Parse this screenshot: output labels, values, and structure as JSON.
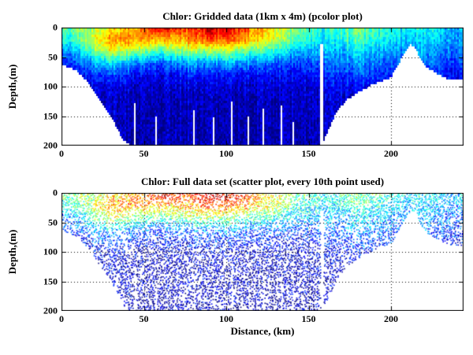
{
  "chart_data": [
    {
      "type": "heatmap",
      "title": "Chlor: Gridded data (1km x 4m) (pcolor plot)",
      "xlabel": "",
      "ylabel": "Depth,(m)",
      "xlim": [
        0,
        244
      ],
      "ylim": [
        200,
        0
      ],
      "xticks": [
        0,
        50,
        100,
        150,
        200
      ],
      "yticks": [
        0,
        50,
        100,
        150,
        200
      ],
      "colormap": "jet",
      "grid": "dotted",
      "field": {
        "x": [
          0,
          10,
          20,
          30,
          40,
          50,
          60,
          70,
          80,
          90,
          100,
          110,
          120,
          130,
          140,
          150,
          160,
          170,
          180,
          190,
          200,
          210,
          220,
          230,
          240
        ],
        "depths": [
          0,
          20,
          40,
          60,
          80,
          100,
          120,
          140,
          160,
          180,
          200
        ],
        "values": [
          [
            0.45,
            0.5,
            0.55,
            0.62,
            0.68,
            0.78,
            0.92,
            0.85,
            0.82,
            0.95,
            0.9,
            0.85,
            0.7,
            0.62,
            0.5,
            0.45,
            0.4,
            0.45,
            0.5,
            0.45,
            0.4,
            0.35,
            0.4,
            0.35,
            0.3
          ],
          [
            0.38,
            0.45,
            0.6,
            0.72,
            0.75,
            0.7,
            0.72,
            0.7,
            0.75,
            0.8,
            0.8,
            0.75,
            0.65,
            0.58,
            0.45,
            0.4,
            0.35,
            0.4,
            0.45,
            0.4,
            0.35,
            0.3,
            0.35,
            0.3,
            0.28
          ],
          [
            0.25,
            0.32,
            0.5,
            0.6,
            0.55,
            0.5,
            0.45,
            0.5,
            0.55,
            0.52,
            0.55,
            0.5,
            0.45,
            0.4,
            0.32,
            0.3,
            0.3,
            0.3,
            0.35,
            0.3,
            0.28,
            0.25,
            0.3,
            0.25,
            0.22
          ],
          [
            0.15,
            0.2,
            0.3,
            0.35,
            0.3,
            0.25,
            0.22,
            0.25,
            0.3,
            0.26,
            0.3,
            0.28,
            0.25,
            0.22,
            0.18,
            0.2,
            0.22,
            0.25,
            0.28,
            0.25,
            0.2,
            0.18,
            0.25,
            0.2,
            0.18
          ],
          [
            0.1,
            0.12,
            0.18,
            0.2,
            0.15,
            0.12,
            0.12,
            0.13,
            0.15,
            0.13,
            0.15,
            0.14,
            0.13,
            0.12,
            0.1,
            0.12,
            0.15,
            0.18,
            0.2,
            0.18,
            0.15,
            0.14,
            0.18,
            0.15,
            0.13
          ],
          [
            0.08,
            0.09,
            0.1,
            0.1,
            0.08,
            0.07,
            0.07,
            0.08,
            0.08,
            0.08,
            0.08,
            0.08,
            0.08,
            0.08,
            0.07,
            0.08,
            0.1,
            0.12,
            0.13,
            0.12,
            0.1,
            0.1,
            0.12,
            0.1,
            0.09
          ],
          [
            0.06,
            0.07,
            0.08,
            0.08,
            0.06,
            0.06,
            0.06,
            0.06,
            0.06,
            0.06,
            0.06,
            0.06,
            0.06,
            0.06,
            0.06,
            0.07,
            0.08,
            0.09,
            0.09,
            0.08,
            0.08,
            0.08,
            0.08,
            0.08,
            0.07
          ],
          [
            0.05,
            0.06,
            0.07,
            0.07,
            0.06,
            0.05,
            0.05,
            0.05,
            0.05,
            0.05,
            0.05,
            0.05,
            0.05,
            0.05,
            0.05,
            0.06,
            0.07,
            0.07,
            0.07,
            0.07,
            0.06,
            0.06,
            0.06,
            0.06,
            0.06
          ],
          [
            0.05,
            0.05,
            0.06,
            0.06,
            0.05,
            0.05,
            0.05,
            0.05,
            0.05,
            0.05,
            0.05,
            0.05,
            0.05,
            0.05,
            0.05,
            0.05,
            0.06,
            0.06,
            0.06,
            0.06,
            0.05,
            0.05,
            0.05,
            0.05,
            0.05
          ],
          [
            0.05,
            0.05,
            0.06,
            0.06,
            0.05,
            0.05,
            0.05,
            0.05,
            0.05,
            0.05,
            0.05,
            0.05,
            0.05,
            0.05,
            0.05,
            0.05,
            0.06,
            0.06,
            0.06,
            0.06,
            0.05,
            0.05,
            0.05,
            0.05,
            0.05
          ],
          [
            0.05,
            0.05,
            0.06,
            0.06,
            0.05,
            0.05,
            0.05,
            0.05,
            0.05,
            0.05,
            0.05,
            0.05,
            0.05,
            0.05,
            0.05,
            0.05,
            0.06,
            0.06,
            0.06,
            0.06,
            0.05,
            0.05,
            0.05,
            0.05,
            0.05
          ]
        ],
        "seafloor": {
          "x": [
            0,
            5,
            10,
            15,
            20,
            25,
            30,
            35,
            38,
            42,
            150,
            155,
            158,
            162,
            166,
            172,
            180,
            190,
            200,
            205,
            209,
            212,
            215,
            218,
            222,
            228,
            235,
            244
          ],
          "depth": [
            62,
            68,
            75,
            90,
            110,
            130,
            150,
            178,
            192,
            200,
            200,
            200,
            200,
            175,
            150,
            125,
            110,
            95,
            85,
            60,
            40,
            28,
            35,
            55,
            68,
            78,
            88,
            90
          ]
        },
        "gaps": [
          {
            "x": 44,
            "from": 128,
            "w": 2
          },
          {
            "x": 57,
            "from": 150,
            "w": 2
          },
          {
            "x": 80,
            "from": 140,
            "w": 2
          },
          {
            "x": 92,
            "from": 152,
            "w": 2
          },
          {
            "x": 103,
            "from": 125,
            "w": 2
          },
          {
            "x": 113,
            "from": 150,
            "w": 2
          },
          {
            "x": 122,
            "from": 138,
            "w": 2
          },
          {
            "x": 133,
            "from": 132,
            "w": 2
          },
          {
            "x": 140,
            "from": 160,
            "w": 2
          },
          {
            "x": 157,
            "from": 28,
            "w": 4
          }
        ]
      }
    },
    {
      "type": "scatter",
      "title": "Chlor: Full data set (scatter plot, every 10th point used)",
      "xlabel": "Distance, (km)",
      "ylabel": "Depth,(m)",
      "xlim": [
        0,
        244
      ],
      "ylim": [
        200,
        0
      ],
      "xticks": [
        0,
        50,
        100,
        150,
        200
      ],
      "yticks": [
        0,
        50,
        100,
        150,
        200
      ],
      "colormap": "jet",
      "grid": "dotted",
      "field_ref": 0
    }
  ]
}
